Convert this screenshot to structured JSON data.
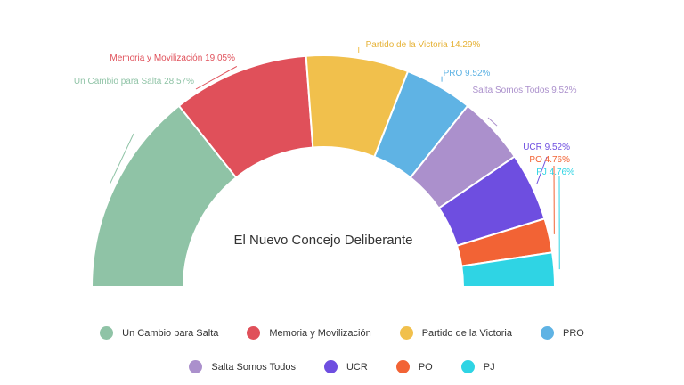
{
  "chart_data": {
    "type": "pie",
    "subtype": "semicircle-donut",
    "title": "El Nuevo Concejo Deliberante",
    "categories": [
      "Un Cambio para Salta",
      "Memoria y Movilización",
      "Partido de la Victoria",
      "PRO",
      "Salta Somos Todos",
      "UCR",
      "PO",
      "PJ"
    ],
    "values": [
      28.57,
      19.05,
      14.29,
      9.52,
      9.52,
      9.52,
      4.76,
      4.76
    ],
    "data_labels": [
      "Un Cambio para Salta 28.57%",
      "Memoria y Movilización 19.05%",
      "Partido de la Victoria 14.29%",
      "PRO 9.52%",
      "Salta Somos Todos 9.52%",
      "UCR 9.52%",
      "PO 4.76%",
      "PJ 4.76%"
    ],
    "colors": [
      "#8fc3a6",
      "#e0505a",
      "#f1c04c",
      "#5fb3e4",
      "#ab90cc",
      "#6e4ee0",
      "#f26335",
      "#2fd4e4"
    ],
    "legend_position": "bottom"
  }
}
